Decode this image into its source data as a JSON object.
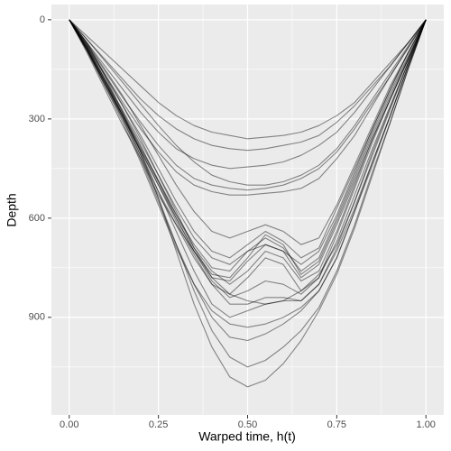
{
  "chart_data": {
    "type": "line",
    "xlabel": "Warped time, h(t)",
    "ylabel": "Depth",
    "x": [
      0,
      0.05,
      0.1,
      0.15,
      0.2,
      0.25,
      0.3,
      0.35,
      0.4,
      0.45,
      0.5,
      0.55,
      0.6,
      0.65,
      0.7,
      0.75,
      0.8,
      0.85,
      0.9,
      0.95,
      1
    ],
    "xlim": [
      -0.05,
      1.05
    ],
    "ylim": [
      1195,
      -46
    ],
    "y_reversed": true,
    "xticks": [
      {
        "value": 0,
        "label": "0.00"
      },
      {
        "value": 0.25,
        "label": "0.25"
      },
      {
        "value": 0.5,
        "label": "0.50"
      },
      {
        "value": 0.75,
        "label": "0.75"
      },
      {
        "value": 1,
        "label": "1.00"
      }
    ],
    "yticks": [
      0,
      300,
      600,
      900
    ],
    "x_minor_breaks": [
      0.125,
      0.375,
      0.625,
      0.875
    ],
    "y_minor_breaks": [
      150,
      450,
      750,
      1050
    ],
    "grid": true,
    "line_opacity": 0.45,
    "series": [
      {
        "color": "#000000",
        "values": [
          0,
          90,
          190,
          290,
          390,
          490,
          590,
          680,
          750,
          760,
          700,
          660,
          690,
          760,
          720,
          600,
          470,
          340,
          220,
          110,
          0
        ]
      },
      {
        "color": "#000000",
        "values": [
          0,
          100,
          210,
          320,
          420,
          530,
          620,
          700,
          780,
          790,
          730,
          680,
          700,
          780,
          740,
          620,
          490,
          360,
          240,
          120,
          0
        ]
      },
      {
        "color": "#000000",
        "values": [
          0,
          80,
          170,
          260,
          350,
          450,
          550,
          640,
          700,
          720,
          680,
          640,
          670,
          720,
          690,
          570,
          450,
          330,
          210,
          100,
          0
        ]
      },
      {
        "color": "#000000",
        "values": [
          0,
          95,
          200,
          300,
          410,
          520,
          620,
          720,
          800,
          830,
          780,
          720,
          740,
          820,
          780,
          650,
          510,
          370,
          240,
          120,
          0
        ]
      },
      {
        "color": "#000000",
        "values": [
          0,
          85,
          180,
          275,
          370,
          470,
          570,
          660,
          720,
          740,
          700,
          680,
          700,
          740,
          700,
          590,
          460,
          330,
          210,
          100,
          0
        ]
      },
      {
        "color": "#000000",
        "values": [
          0,
          70,
          150,
          230,
          320,
          410,
          500,
          580,
          640,
          660,
          640,
          620,
          640,
          680,
          660,
          560,
          440,
          320,
          200,
          100,
          0
        ]
      },
      {
        "color": "#000000",
        "values": [
          0,
          90,
          200,
          310,
          430,
          560,
          690,
          800,
          880,
          920,
          930,
          920,
          900,
          870,
          820,
          720,
          580,
          430,
          290,
          140,
          0
        ]
      },
      {
        "color": "#000000",
        "values": [
          0,
          80,
          180,
          290,
          410,
          540,
          680,
          820,
          940,
          1020,
          1050,
          1030,
          990,
          940,
          870,
          760,
          620,
          460,
          310,
          150,
          0
        ]
      },
      {
        "color": "#000000",
        "values": [
          0,
          85,
          190,
          300,
          420,
          550,
          680,
          800,
          900,
          960,
          970,
          950,
          920,
          880,
          820,
          720,
          580,
          440,
          290,
          140,
          0
        ]
      },
      {
        "color": "#000000",
        "values": [
          0,
          90,
          190,
          290,
          400,
          520,
          640,
          760,
          860,
          900,
          880,
          860,
          850,
          850,
          800,
          700,
          570,
          430,
          290,
          140,
          0
        ]
      },
      {
        "color": "#000000",
        "values": [
          0,
          75,
          165,
          260,
          360,
          470,
          580,
          690,
          780,
          830,
          850,
          860,
          850,
          820,
          770,
          680,
          550,
          410,
          270,
          130,
          0
        ]
      },
      {
        "color": "#000000",
        "values": [
          0,
          70,
          170,
          280,
          400,
          540,
          700,
          860,
          990,
          1080,
          1110,
          1090,
          1040,
          970,
          880,
          770,
          630,
          470,
          310,
          150,
          0
        ]
      },
      {
        "color": "#000000",
        "values": [
          0,
          50,
          100,
          150,
          200,
          250,
          290,
          320,
          340,
          350,
          360,
          355,
          350,
          340,
          320,
          290,
          250,
          190,
          130,
          70,
          0
        ]
      },
      {
        "color": "#000000",
        "values": [
          0,
          60,
          120,
          180,
          240,
          290,
          330,
          360,
          380,
          390,
          395,
          390,
          380,
          370,
          350,
          310,
          260,
          200,
          140,
          70,
          0
        ]
      },
      {
        "color": "#000000",
        "values": [
          0,
          70,
          140,
          210,
          280,
          340,
          390,
          420,
          440,
          450,
          445,
          440,
          430,
          410,
          380,
          340,
          280,
          210,
          140,
          70,
          0
        ]
      },
      {
        "color": "#000000",
        "values": [
          0,
          75,
          155,
          235,
          310,
          380,
          440,
          480,
          500,
          510,
          515,
          510,
          500,
          480,
          450,
          400,
          330,
          250,
          170,
          85,
          0
        ]
      },
      {
        "color": "#000000",
        "values": [
          0,
          80,
          165,
          250,
          330,
          400,
          460,
          500,
          520,
          530,
          530,
          525,
          520,
          510,
          480,
          420,
          350,
          260,
          170,
          85,
          0
        ]
      },
      {
        "color": "#000000",
        "values": [
          0,
          60,
          125,
          190,
          255,
          320,
          380,
          430,
          470,
          490,
          500,
          500,
          490,
          470,
          440,
          390,
          320,
          240,
          160,
          80,
          0
        ]
      },
      {
        "color": "#000000",
        "values": [
          0,
          95,
          195,
          295,
          395,
          500,
          600,
          700,
          770,
          780,
          720,
          650,
          680,
          770,
          730,
          610,
          480,
          350,
          230,
          115,
          0
        ]
      },
      {
        "color": "#000000",
        "values": [
          0,
          90,
          185,
          285,
          385,
          485,
          590,
          690,
          760,
          800,
          760,
          700,
          720,
          790,
          760,
          640,
          500,
          360,
          240,
          120,
          0
        ]
      },
      {
        "color": "#000000",
        "values": [
          0,
          85,
          180,
          280,
          380,
          490,
          600,
          700,
          790,
          840,
          820,
          790,
          800,
          830,
          780,
          670,
          530,
          390,
          260,
          130,
          0
        ]
      },
      {
        "color": "#000000",
        "values": [
          0,
          90,
          190,
          290,
          395,
          500,
          610,
          710,
          800,
          860,
          860,
          840,
          840,
          850,
          800,
          690,
          550,
          400,
          265,
          130,
          0
        ]
      }
    ]
  }
}
